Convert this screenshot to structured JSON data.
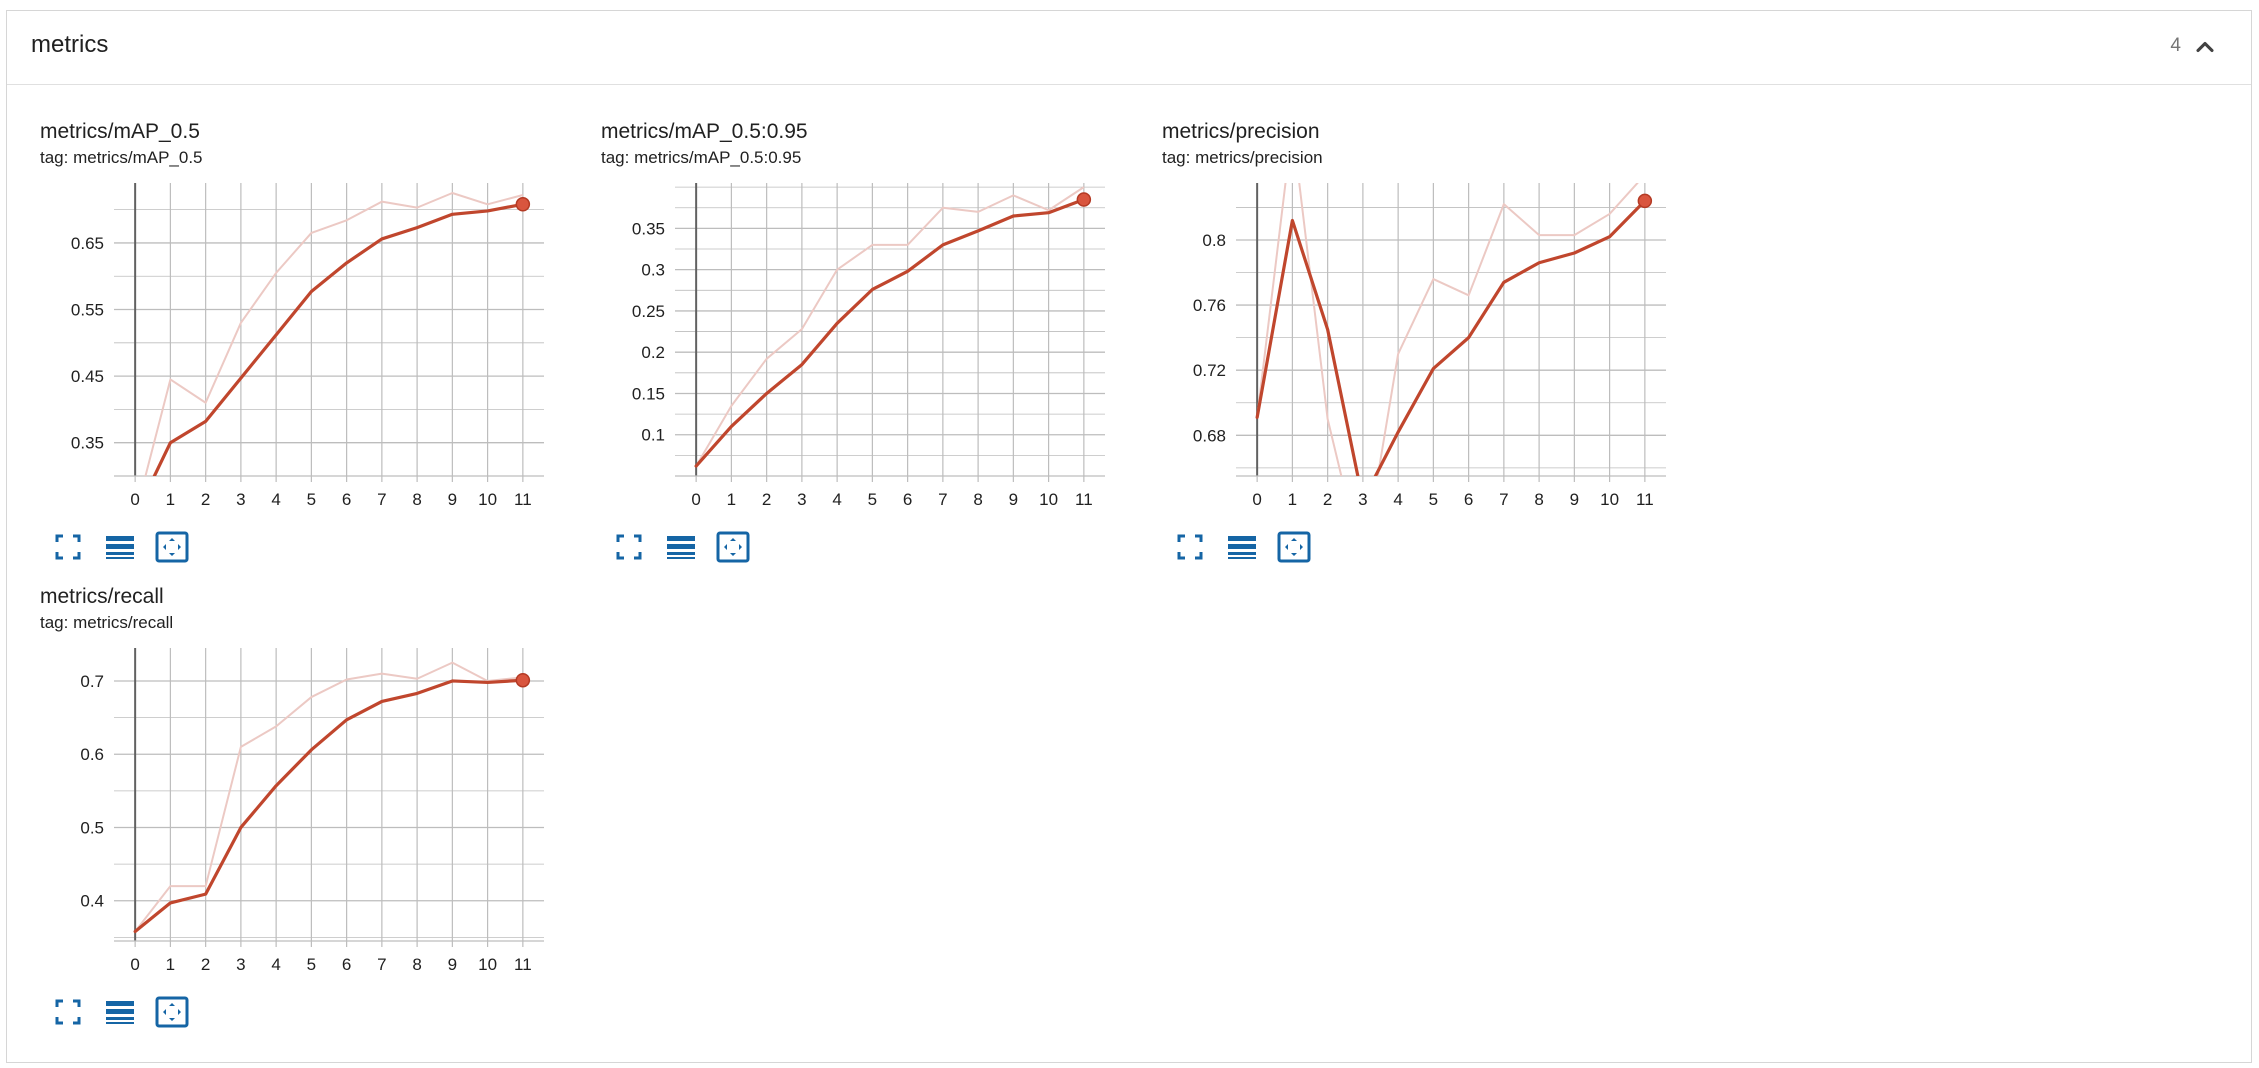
{
  "group": {
    "title": "metrics",
    "count": "4"
  },
  "colors": {
    "series": "#c0462d",
    "series_light": "#ecc9c4",
    "grid": "#bdbdbd",
    "axis": "#616161",
    "button": "#1565a5"
  },
  "icons": {
    "expand": "fullscreen-icon",
    "data": "data-table-icon",
    "fit": "fit-domain-icon",
    "collapse": "chevron-up-icon"
  },
  "cards": [
    {
      "title": "metrics/mAP_0.5",
      "tag": "tag: metrics/mAP_0.5"
    },
    {
      "title": "metrics/mAP_0.5:0.95",
      "tag": "tag: metrics/mAP_0.5:0.95"
    },
    {
      "title": "metrics/precision",
      "tag": "tag: metrics/precision"
    },
    {
      "title": "metrics/recall",
      "tag": "tag: metrics/recall"
    }
  ],
  "chart_data": [
    {
      "type": "line",
      "title": "metrics/mAP_0.5",
      "x": [
        0,
        1,
        2,
        3,
        4,
        5,
        6,
        7,
        8,
        9,
        10,
        11
      ],
      "xlim": [
        -0.6,
        11.6
      ],
      "ylim": [
        0.3,
        0.74
      ],
      "yticks": [
        "0.35",
        "0.45",
        "0.55",
        "0.65"
      ],
      "ytick_values": [
        0.35,
        0.45,
        0.55,
        0.65
      ],
      "xticks": [
        "0",
        "1",
        "2",
        "3",
        "4",
        "5",
        "6",
        "7",
        "8",
        "9",
        "10",
        "11"
      ],
      "smoothed": [
        0.24,
        0.35,
        0.382,
        0.447,
        0.512,
        0.577,
        0.62,
        0.656,
        0.673,
        0.693,
        0.698,
        0.708
      ],
      "raw": [
        0.24,
        0.445,
        0.41,
        0.53,
        0.605,
        0.665,
        0.684,
        0.712,
        0.703,
        0.725,
        0.708,
        0.722
      ]
    },
    {
      "type": "line",
      "title": "metrics/mAP_0.5:0.95",
      "x": [
        0,
        1,
        2,
        3,
        4,
        5,
        6,
        7,
        8,
        9,
        10,
        11
      ],
      "xlim": [
        -0.6,
        11.6
      ],
      "ylim": [
        0.05,
        0.405
      ],
      "yticks": [
        "0.1",
        "0.15",
        "0.2",
        "0.25",
        "0.3",
        "0.35"
      ],
      "ytick_values": [
        0.1,
        0.15,
        0.2,
        0.25,
        0.3,
        0.35
      ],
      "xticks": [
        "0",
        "1",
        "2",
        "3",
        "4",
        "5",
        "6",
        "7",
        "8",
        "9",
        "10",
        "11"
      ],
      "smoothed": [
        0.062,
        0.11,
        0.15,
        0.185,
        0.235,
        0.276,
        0.298,
        0.33,
        0.347,
        0.365,
        0.369,
        0.385
      ],
      "raw": [
        0.062,
        0.135,
        0.192,
        0.228,
        0.3,
        0.33,
        0.33,
        0.375,
        0.37,
        0.39,
        0.372,
        0.4
      ]
    },
    {
      "type": "line",
      "title": "metrics/precision",
      "x": [
        0,
        1,
        2,
        3,
        4,
        5,
        6,
        7,
        8,
        9,
        10,
        11
      ],
      "xlim": [
        -0.6,
        11.6
      ],
      "ylim": [
        0.655,
        0.835
      ],
      "yticks": [
        "0.68",
        "0.72",
        "0.76",
        "0.8"
      ],
      "ytick_values": [
        0.68,
        0.72,
        0.76,
        0.8
      ],
      "xticks": [
        "0",
        "1",
        "2",
        "3",
        "4",
        "5",
        "6",
        "7",
        "8",
        "9",
        "10",
        "11"
      ],
      "smoothed": [
        0.691,
        0.812,
        0.745,
        0.64,
        0.682,
        0.721,
        0.74,
        0.774,
        0.786,
        0.792,
        0.802,
        0.824
      ],
      "raw": [
        0.691,
        0.87,
        0.69,
        0.6,
        0.73,
        0.776,
        0.766,
        0.822,
        0.803,
        0.803,
        0.816,
        0.84
      ]
    },
    {
      "type": "line",
      "title": "metrics/recall",
      "x": [
        0,
        1,
        2,
        3,
        4,
        5,
        6,
        7,
        8,
        9,
        10,
        11
      ],
      "xlim": [
        -0.6,
        11.6
      ],
      "ylim": [
        0.345,
        0.745
      ],
      "yticks": [
        "0.4",
        "0.5",
        "0.6",
        "0.7"
      ],
      "ytick_values": [
        0.4,
        0.5,
        0.6,
        0.7
      ],
      "xticks": [
        "0",
        "1",
        "2",
        "3",
        "4",
        "5",
        "6",
        "7",
        "8",
        "9",
        "10",
        "11"
      ],
      "smoothed": [
        0.358,
        0.397,
        0.409,
        0.5,
        0.557,
        0.606,
        0.647,
        0.672,
        0.683,
        0.7,
        0.698,
        0.701
      ],
      "raw": [
        0.358,
        0.42,
        0.42,
        0.61,
        0.638,
        0.678,
        0.702,
        0.71,
        0.703,
        0.725,
        0.7,
        0.705
      ]
    }
  ]
}
